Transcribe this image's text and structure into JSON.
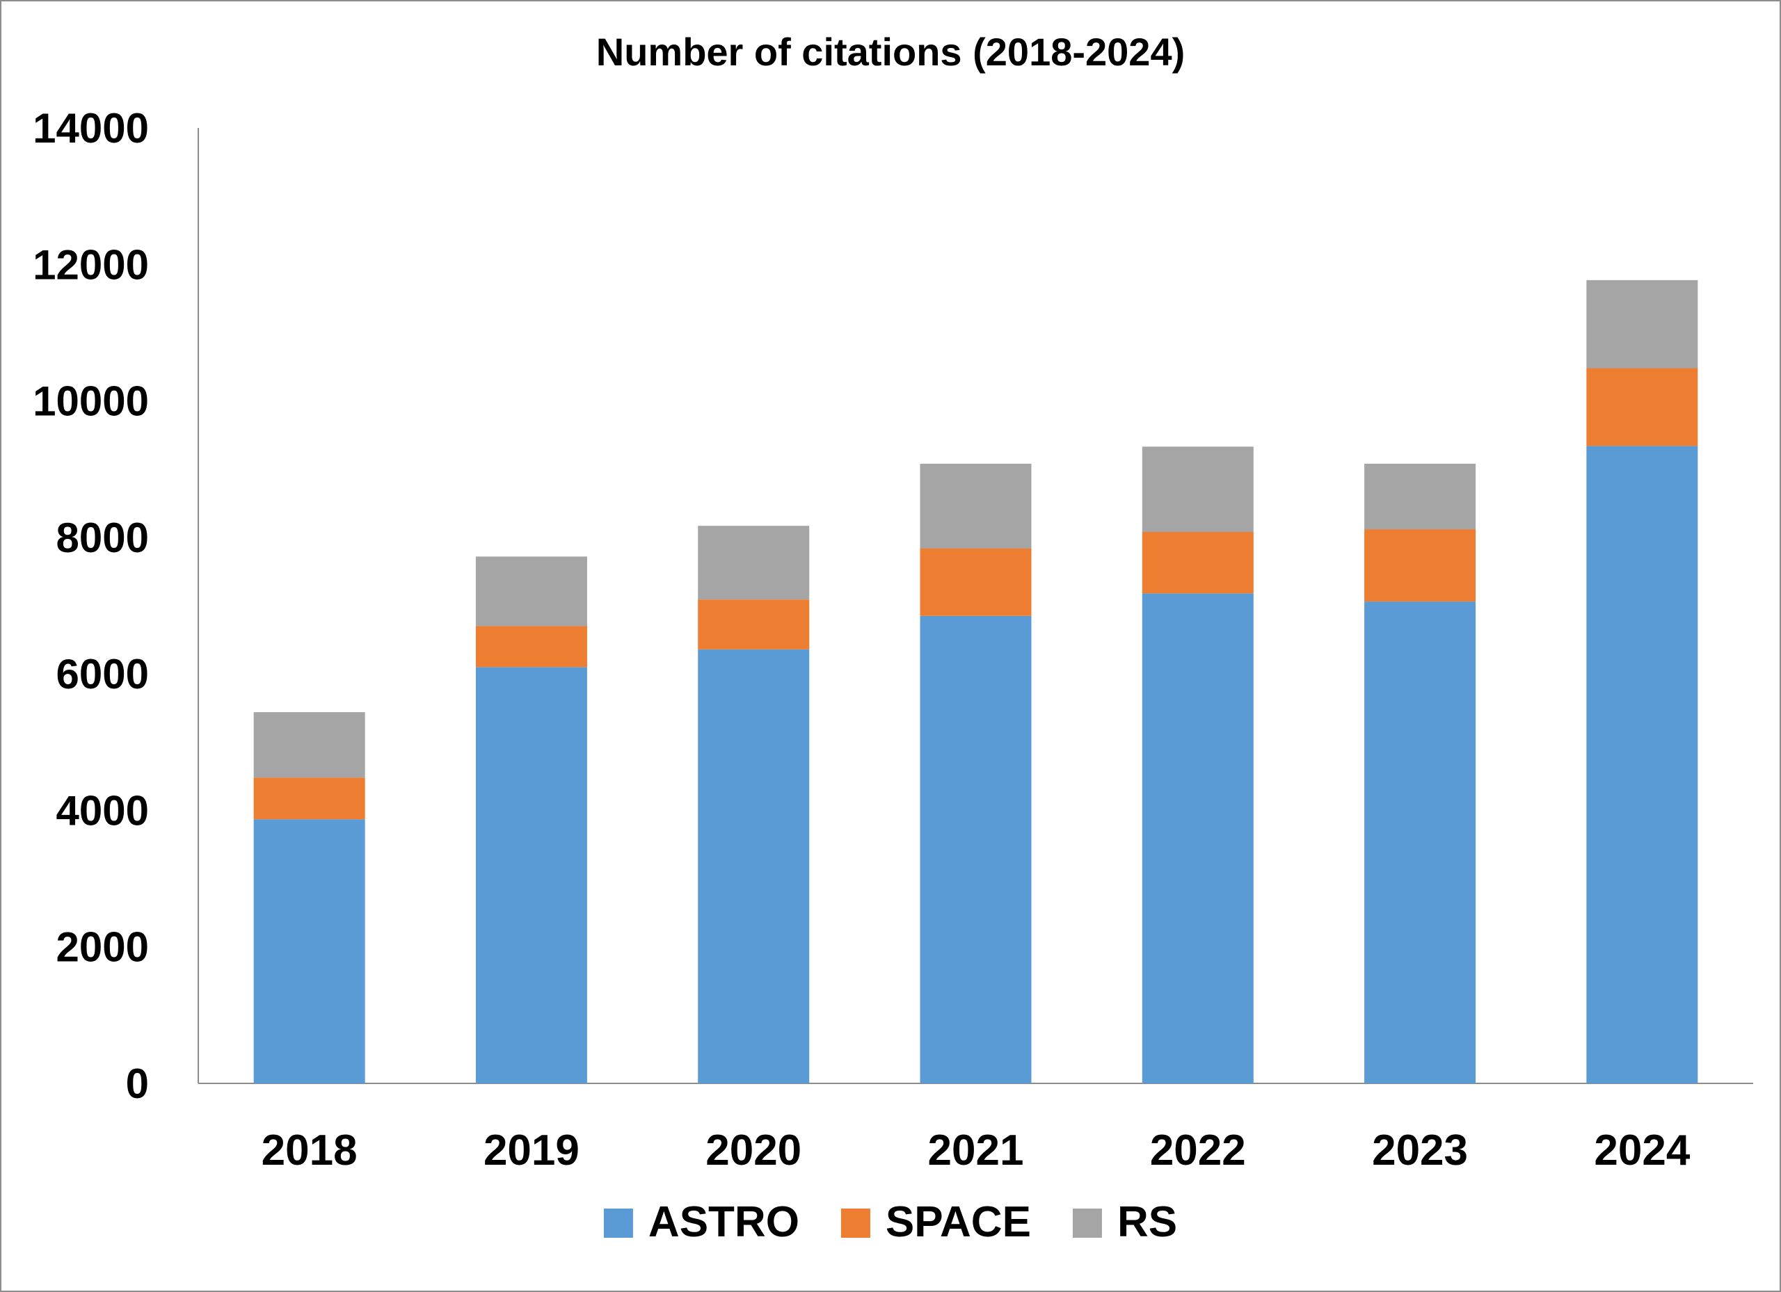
{
  "chart_data": {
    "type": "bar",
    "stacked": true,
    "title": "Number of citations (2018-2024)",
    "xlabel": "",
    "ylabel": "",
    "categories": [
      "2018",
      "2019",
      "2020",
      "2021",
      "2022",
      "2023",
      "2024"
    ],
    "ylim": [
      0,
      14000
    ],
    "yticks": [
      0,
      2000,
      4000,
      6000,
      8000,
      10000,
      12000,
      14000
    ],
    "grid": false,
    "legend_position": "bottom",
    "series": [
      {
        "name": "ASTRO",
        "color": "#5b9bd5",
        "values": [
          3870,
          6100,
          6360,
          6850,
          7180,
          7060,
          9340
        ]
      },
      {
        "name": "SPACE",
        "color": "#ed7d31",
        "values": [
          610,
          600,
          730,
          990,
          900,
          1060,
          1140
        ]
      },
      {
        "name": "RS",
        "color": "#a5a5a5",
        "values": [
          960,
          1020,
          1080,
          1240,
          1250,
          960,
          1290
        ]
      }
    ]
  }
}
